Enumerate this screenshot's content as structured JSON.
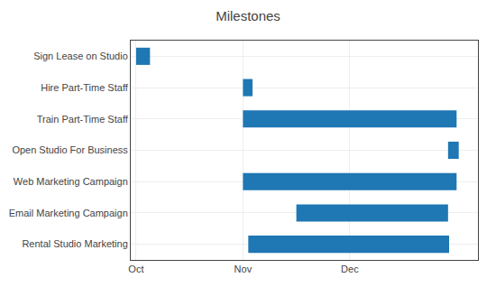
{
  "chart_data": {
    "type": "bar",
    "title": "Milestones",
    "orientation": "horizontal",
    "categories": [
      "Sign Lease on Studio",
      "Hire Part-Time Staff",
      "Train Part-Time Staff",
      "Open Studio For Business",
      "Web Marketing Campaign",
      "Email Marketing Campaign",
      "Rental Studio Marketing"
    ],
    "starts": [
      0.0,
      1.0,
      1.0,
      2.92,
      1.0,
      1.5,
      1.05
    ],
    "values": [
      0.13,
      0.09,
      2.0,
      0.1,
      2.0,
      1.42,
      1.88
    ],
    "xlim": [
      -0.05,
      3.2
    ],
    "xticks": [
      {
        "value": 0,
        "label": "Oct"
      },
      {
        "value": 1,
        "label": "Nov"
      },
      {
        "value": 2,
        "label": "Dec"
      }
    ],
    "grid": true
  }
}
